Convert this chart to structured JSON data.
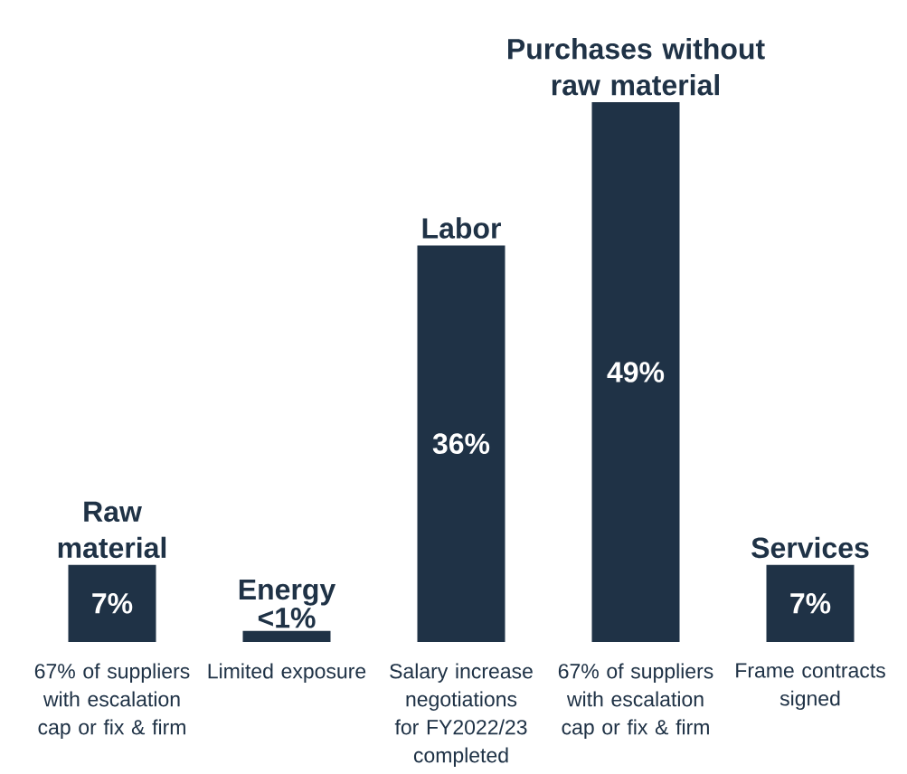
{
  "chart_data": {
    "type": "bar",
    "categories": [
      "Raw material",
      "Energy",
      "Labor",
      "Purchases without raw material",
      "Services"
    ],
    "values": [
      7,
      1,
      36,
      49,
      7
    ],
    "value_labels": [
      "7%",
      "<1%",
      "36%",
      "49%",
      "7%"
    ],
    "color": "#1f3246",
    "annotations": [
      "67% of suppliers with escalation cap or fix & firm",
      "Limited exposure",
      "Salary increase negotiations for FY2022/23 completed",
      "67% of suppliers with escalation cap or fix & firm",
      "Frame contracts signed"
    ]
  }
}
